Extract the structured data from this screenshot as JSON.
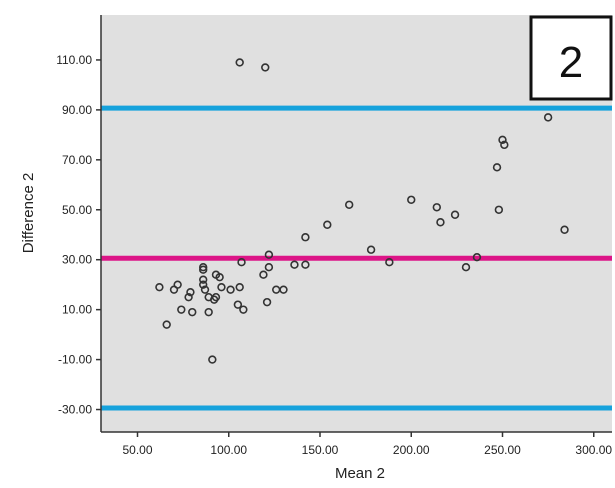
{
  "chart_data": {
    "type": "scatter",
    "title": "",
    "panel_label": "2",
    "xlabel": "Mean 2",
    "ylabel": "Difference 2",
    "xlim": [
      30,
      310
    ],
    "ylim": [
      -39,
      128
    ],
    "x_ticks": [
      50,
      100,
      150,
      200,
      250,
      300
    ],
    "x_tick_labels": [
      "50.00",
      "100.00",
      "150.00",
      "200.00",
      "250.00",
      "300.00"
    ],
    "y_ticks": [
      -30,
      -10,
      10,
      30,
      50,
      70,
      90,
      110
    ],
    "y_tick_labels": [
      "-30.00",
      "-10.00",
      "10.00",
      "30.00",
      "50.00",
      "70.00",
      "90.00",
      "110.00"
    ],
    "grid": false,
    "background_color": "#e0e0e0",
    "marker_color": "#333333",
    "reference_lines": [
      {
        "y": 90.7,
        "color": "#16a2dc"
      },
      {
        "y": 30.6,
        "color": "#dc1587"
      },
      {
        "y": -29.4,
        "color": "#16a2dc"
      }
    ],
    "points": [
      {
        "x": 106,
        "y": 109
      },
      {
        "x": 120,
        "y": 107
      },
      {
        "x": 275,
        "y": 87
      },
      {
        "x": 250,
        "y": 78
      },
      {
        "x": 251,
        "y": 76
      },
      {
        "x": 247,
        "y": 67
      },
      {
        "x": 200,
        "y": 54
      },
      {
        "x": 166,
        "y": 52
      },
      {
        "x": 214,
        "y": 51
      },
      {
        "x": 248,
        "y": 50
      },
      {
        "x": 224,
        "y": 48
      },
      {
        "x": 216,
        "y": 45
      },
      {
        "x": 154,
        "y": 44
      },
      {
        "x": 284,
        "y": 42
      },
      {
        "x": 142,
        "y": 39
      },
      {
        "x": 178,
        "y": 34
      },
      {
        "x": 122,
        "y": 32
      },
      {
        "x": 236,
        "y": 31
      },
      {
        "x": 188,
        "y": 29
      },
      {
        "x": 107,
        "y": 29
      },
      {
        "x": 136,
        "y": 28
      },
      {
        "x": 142,
        "y": 28
      },
      {
        "x": 230,
        "y": 27
      },
      {
        "x": 122,
        "y": 27
      },
      {
        "x": 86,
        "y": 27
      },
      {
        "x": 86,
        "y": 26
      },
      {
        "x": 93,
        "y": 24
      },
      {
        "x": 119,
        "y": 24
      },
      {
        "x": 95,
        "y": 23
      },
      {
        "x": 86,
        "y": 22
      },
      {
        "x": 86,
        "y": 20
      },
      {
        "x": 72,
        "y": 20
      },
      {
        "x": 96,
        "y": 19
      },
      {
        "x": 62,
        "y": 19
      },
      {
        "x": 106,
        "y": 19
      },
      {
        "x": 101,
        "y": 18
      },
      {
        "x": 87,
        "y": 18
      },
      {
        "x": 70,
        "y": 18
      },
      {
        "x": 79,
        "y": 17
      },
      {
        "x": 126,
        "y": 18
      },
      {
        "x": 130,
        "y": 18
      },
      {
        "x": 78,
        "y": 15
      },
      {
        "x": 89,
        "y": 15
      },
      {
        "x": 93,
        "y": 15
      },
      {
        "x": 92,
        "y": 14
      },
      {
        "x": 105,
        "y": 12
      },
      {
        "x": 121,
        "y": 13
      },
      {
        "x": 74,
        "y": 10
      },
      {
        "x": 80,
        "y": 9
      },
      {
        "x": 89,
        "y": 9
      },
      {
        "x": 108,
        "y": 10
      },
      {
        "x": 66,
        "y": 4
      },
      {
        "x": 91,
        "y": -10
      }
    ]
  }
}
